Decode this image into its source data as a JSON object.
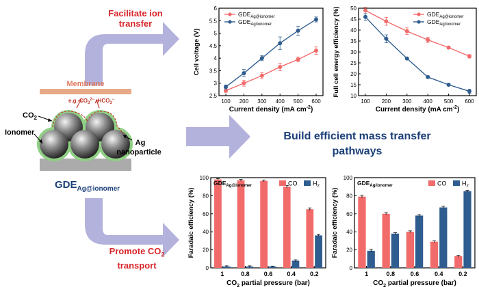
{
  "labels": {
    "facilitate": [
      "Facilitate ion",
      "transfer"
    ],
    "promote": [
      "Promote CO",
      "2",
      "transport"
    ],
    "headline": [
      "Build efficient mass transfer",
      "pathways"
    ],
    "membrane": "Membrane",
    "co2": "CO",
    "co2_sub": "2",
    "ions_prefix": "e.g. CO",
    "ions_sub1": "3",
    "ions_sup1": "2−",
    "ions_mid": ", HCO",
    "ions_sub2": "3",
    "ions_sup2": "−",
    "ionomer": "Ionomer",
    "ag": "Ag",
    "nanoparticle": "nanoparticle",
    "gde_main": "GDE",
    "gde_main_sub": "Ag@ionomer"
  },
  "colors": {
    "red": "#f26b6b",
    "blue": "#2f5d8f",
    "arrow": "#b3b2dc",
    "membrane": "#e8a987",
    "substrate": "#ababab",
    "ionomer_green": "#90cf85",
    "headline": "#1b3f78",
    "accent_text": "#d9262b"
  },
  "chart_data": [
    {
      "type": "line",
      "xlabel": "Current density (mA cm",
      "xlabel_sup": "-2",
      "xlabel_end": ")",
      "ylabel": "Cell voltage (V)",
      "x": [
        100,
        200,
        300,
        400,
        500,
        600
      ],
      "xlim": [
        100,
        600
      ],
      "ylim": [
        2.5,
        6.0
      ],
      "yticks": [
        2.5,
        3.0,
        3.5,
        4.0,
        4.5,
        5.0,
        5.5,
        6.0
      ],
      "legend_position": "top-left",
      "series": [
        {
          "name": "GDE",
          "name_sub": "Ag@ionomer",
          "color": "#f26b6b",
          "values": [
            2.7,
            3.0,
            3.3,
            3.65,
            3.95,
            4.3
          ],
          "errors": [
            0.07,
            0.12,
            0.12,
            0.15,
            0.1,
            0.15
          ]
        },
        {
          "name": "GDE",
          "name_sub": "Ag/ionomer",
          "color": "#2f5d8f",
          "values": [
            2.85,
            3.4,
            4.0,
            4.6,
            5.1,
            5.55
          ],
          "errors": [
            0.08,
            0.15,
            0.1,
            0.25,
            0.18,
            0.1
          ]
        }
      ]
    },
    {
      "type": "line",
      "xlabel": "Current density (mA cm",
      "xlabel_sup": "-2",
      "xlabel_end": ")",
      "ylabel": "Full cell energy efficiency (%)",
      "x": [
        100,
        200,
        300,
        400,
        500,
        600
      ],
      "xlim": [
        100,
        600
      ],
      "ylim": [
        10,
        50
      ],
      "yticks": [
        10,
        15,
        20,
        25,
        30,
        35,
        40,
        45,
        50
      ],
      "legend_position": "top-right",
      "series": [
        {
          "name": "GDE",
          "name_sub": "Ag@ionomer",
          "color": "#f26b6b",
          "values": [
            49,
            44,
            39.5,
            35.5,
            32,
            28
          ],
          "errors": [
            1.5,
            1.8,
            1.5,
            1.2,
            0.6,
            0.8
          ]
        },
        {
          "name": "GDE",
          "name_sub": "Ag/ionomer",
          "color": "#2f5d8f",
          "values": [
            46,
            36,
            27,
            18.5,
            15,
            12
          ],
          "errors": [
            1.5,
            1.8,
            0.5,
            0.5,
            0.5,
            1.0
          ]
        }
      ]
    },
    {
      "type": "bar",
      "title": "GDE",
      "title_sub": "Ag@ionomer",
      "xlabel": "CO",
      "xlabel_sub": "2",
      "xlabel_end": " partial pressure (bar)",
      "ylabel": "Faradaic efficiency (%)",
      "categories": [
        "1",
        "0.8",
        "0.6",
        "0.4",
        "0.2"
      ],
      "ylim": [
        0,
        100
      ],
      "yticks": [
        0,
        20,
        40,
        60,
        80,
        100
      ],
      "legend_position": "top-right",
      "series": [
        {
          "name": "CO",
          "color": "#f26b6b",
          "values": [
            98,
            97,
            96.5,
            90,
            65
          ],
          "errors": [
            1,
            1,
            0.8,
            1.2,
            1.5
          ]
        },
        {
          "name": "H",
          "name_sub": "2",
          "color": "#2f5d8f",
          "values": [
            1.5,
            1.5,
            1.5,
            8,
            36
          ],
          "errors": [
            0.8,
            0.8,
            0.5,
            1.0,
            1.0
          ]
        }
      ]
    },
    {
      "type": "bar",
      "title": "GDE",
      "title_sub": "Ag/ionomer",
      "xlabel": "CO",
      "xlabel_sub": "2",
      "xlabel_end": " partial pressure (bar)",
      "ylabel": "Faradaic efficiency (%)",
      "categories": [
        "1",
        "0.8",
        "0.6",
        "0.4",
        "0.2"
      ],
      "ylim": [
        0,
        100
      ],
      "yticks": [
        0,
        20,
        40,
        60,
        80,
        100
      ],
      "legend_position": "top-right",
      "series": [
        {
          "name": "CO",
          "color": "#f26b6b",
          "values": [
            79,
            60,
            40,
            29,
            13
          ],
          "errors": [
            1.5,
            1.2,
            1.0,
            1.0,
            1.0
          ]
        },
        {
          "name": "H",
          "name_sub": "2",
          "color": "#2f5d8f",
          "values": [
            19,
            38,
            58,
            67,
            85
          ],
          "errors": [
            1.5,
            1.0,
            1.0,
            1.2,
            1.0
          ]
        }
      ]
    }
  ]
}
